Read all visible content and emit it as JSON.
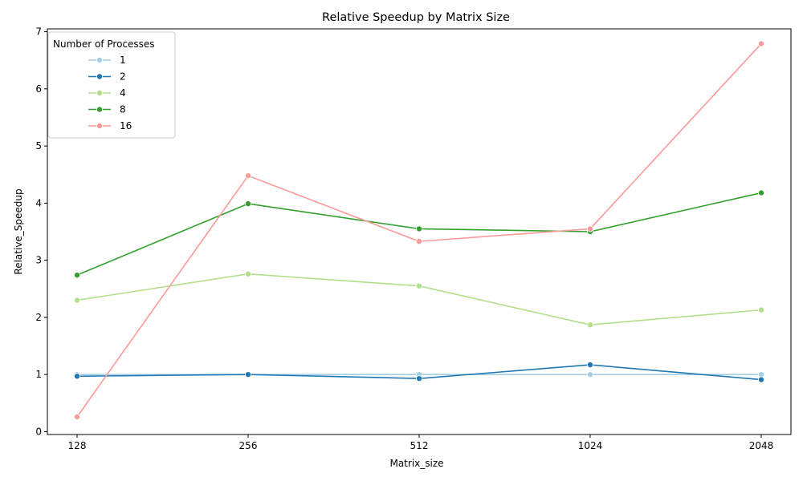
{
  "chart_data": {
    "type": "line",
    "title": "Relative Speedup by Matrix Size",
    "xlabel": "Matrix_size",
    "ylabel": "Relative_Speedup",
    "categories": [
      "128",
      "256",
      "512",
      "1024",
      "2048"
    ],
    "ylim": [
      -0.05,
      7.05
    ],
    "yticks": [
      0,
      1,
      2,
      3,
      4,
      5,
      6,
      7
    ],
    "grid": false,
    "legend": {
      "title": "Number of Processes",
      "position": "top-left"
    },
    "series": [
      {
        "name": "1",
        "color": "#a6cee3",
        "values": [
          1.0,
          1.0,
          1.0,
          1.0,
          1.0
        ]
      },
      {
        "name": "2",
        "color": "#1f78b4",
        "values": [
          0.97,
          1.0,
          0.93,
          1.17,
          0.91
        ]
      },
      {
        "name": "4",
        "color": "#b2df8a",
        "values": [
          2.3,
          2.76,
          2.55,
          1.87,
          2.13
        ]
      },
      {
        "name": "8",
        "color": "#33a02c",
        "values": [
          2.74,
          3.99,
          3.55,
          3.5,
          4.18
        ]
      },
      {
        "name": "16",
        "color": "#fb9a99",
        "values": [
          0.26,
          4.48,
          3.33,
          3.55,
          6.79
        ]
      }
    ]
  }
}
